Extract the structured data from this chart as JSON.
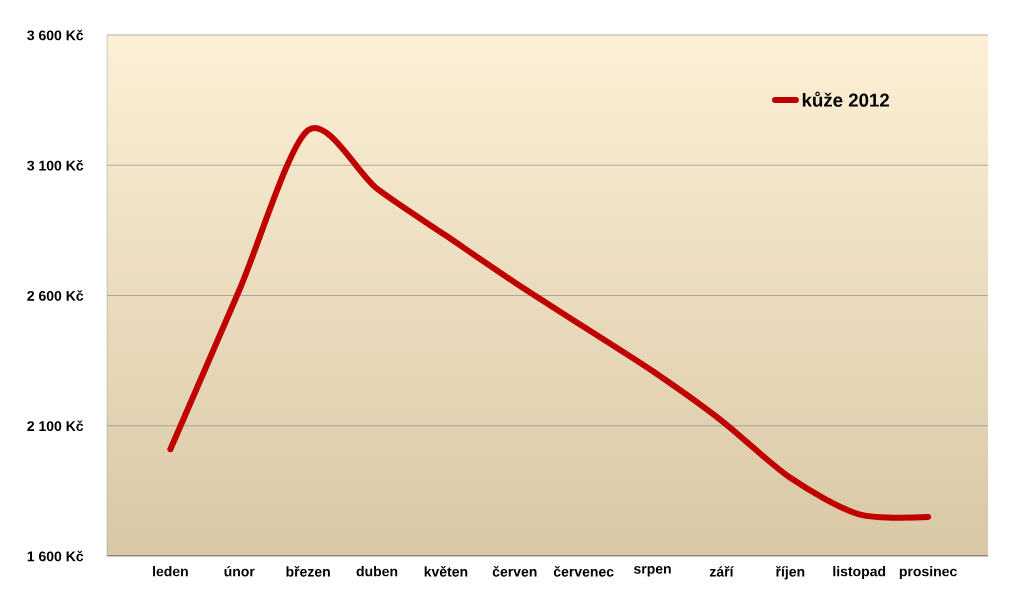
{
  "chart_data": {
    "type": "line",
    "categories": [
      "leden",
      "únor",
      "březen",
      "duben",
      "květen",
      "červen",
      "červenec",
      "srpen",
      "září",
      "říjen",
      "listopad",
      "prosinec"
    ],
    "series": [
      {
        "name": "kůže 2012",
        "color": "#c00000",
        "values": [
          2010,
          2620,
          3235,
          3010,
          2830,
          2650,
          2480,
          2310,
          2120,
          1900,
          1760,
          1750
        ]
      }
    ],
    "ylim": [
      1600,
      3600
    ],
    "yticks": [
      {
        "value": 1600,
        "label": "1 600 Kč"
      },
      {
        "value": 2100,
        "label": "2 100 Kč"
      },
      {
        "value": 2600,
        "label": "2 600 Kč"
      },
      {
        "value": 3100,
        "label": "3 100 Kč"
      },
      {
        "value": 3600,
        "label": "3 600 Kč"
      }
    ],
    "grid": "y",
    "legend": "top right",
    "marker": "none",
    "line_style": "solid"
  }
}
